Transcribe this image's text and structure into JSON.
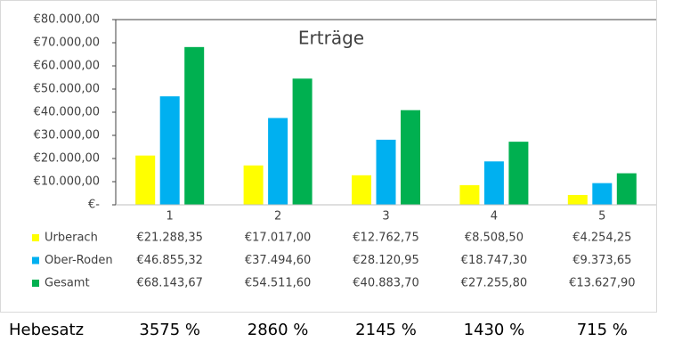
{
  "chart_data": {
    "type": "bar",
    "title": "Erträge",
    "categories": [
      "1",
      "2",
      "3",
      "4",
      "5"
    ],
    "series": [
      {
        "name": "Urberach",
        "color": "#ffff00",
        "values": [
          21288.35,
          17017.0,
          12762.75,
          8508.5,
          4254.25
        ],
        "value_labels": [
          "€21.288,35",
          "€17.017,00",
          "€12.762,75",
          "€8.508,50",
          "€4.254,25"
        ]
      },
      {
        "name": "Ober-Roden",
        "color": "#00b0f0",
        "values": [
          46855.32,
          37494.6,
          28120.95,
          18747.3,
          9373.65
        ],
        "value_labels": [
          "€46.855,32",
          "€37.494,60",
          "€28.120,95",
          "€18.747,30",
          "€9.373,65"
        ]
      },
      {
        "name": "Gesamt",
        "color": "#00b050",
        "values": [
          68143.67,
          54511.6,
          40883.7,
          27255.8,
          13627.9
        ],
        "value_labels": [
          "€68.143,67",
          "€54.511,60",
          "€40.883,70",
          "€27.255,80",
          "€13.627,90"
        ]
      }
    ],
    "ylim": [
      0,
      80000
    ],
    "yticks": [
      {
        "value": 0,
        "label": "€-"
      },
      {
        "value": 10000,
        "label": "€10.000,00"
      },
      {
        "value": 20000,
        "label": "€20.000,00"
      },
      {
        "value": 30000,
        "label": "€30.000,00"
      },
      {
        "value": 40000,
        "label": "€40.000,00"
      },
      {
        "value": 50000,
        "label": "€50.000,00"
      },
      {
        "value": 60000,
        "label": "€60.000,00"
      },
      {
        "value": 70000,
        "label": "€70.000,00"
      },
      {
        "value": 80000,
        "label": "€80.000,00"
      }
    ]
  },
  "hebesatz": {
    "label": "Hebesatz",
    "values": [
      "3575 %",
      "2860 %",
      "2145 %",
      "1430 %",
      "715 %"
    ]
  }
}
